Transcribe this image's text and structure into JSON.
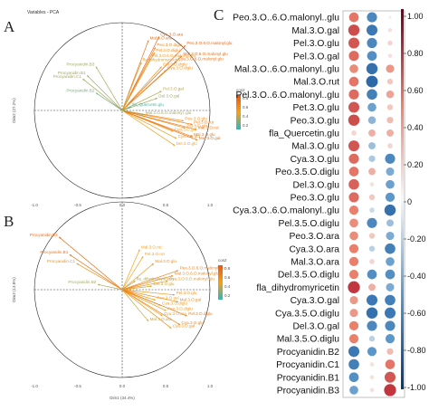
{
  "panels": {
    "a": {
      "letter": "A",
      "title": "Variables - PCA",
      "xlabel": "",
      "ylabel": "Dim2 (27.2%)",
      "legend_title": "cos2",
      "legend_ticks": [
        "0.8",
        "0.6",
        "0.4",
        "0.2"
      ],
      "ticks": [
        "-1.0",
        "-0.5",
        "0.0",
        "0.5",
        "1.0"
      ]
    },
    "b": {
      "letter": "B",
      "xlabel": "Dim1 (34.4%)",
      "ylabel": "Dim3 (13.8%)",
      "legend_title": "cos2",
      "legend_ticks": [
        "0.8",
        "0.6",
        "0.4",
        "0.2"
      ],
      "ticks": [
        "-1.0",
        "-0.5",
        "0.0",
        "0.5",
        "1.0"
      ]
    },
    "c": {
      "letter": "C"
    }
  },
  "chart_data": [
    {
      "type": "scatter",
      "kind": "pca-correlation-circle",
      "title": "Variables - PCA",
      "xlabel": "",
      "ylabel": "Dim2 (27.2%)",
      "xlim": [
        -1,
        1
      ],
      "ylim": [
        -1,
        1
      ],
      "color_scale": {
        "name": "cos2",
        "colors": [
          "#2ab7c0",
          "#f6a01a",
          "#e2581a"
        ]
      },
      "vectors": [
        {
          "label": "Cya.3.O.ara",
          "x": 0.42,
          "y": 0.84,
          "cos2": 0.9
        },
        {
          "label": "Mal.3.O.ara",
          "x": 0.3,
          "y": 0.8,
          "cos2": 0.8
        },
        {
          "label": "Peo.3.O.diglu",
          "x": 0.38,
          "y": 0.72,
          "cos2": 0.7
        },
        {
          "label": "Pel.3.O.diglu",
          "x": 0.37,
          "y": 0.66,
          "cos2": 0.65
        },
        {
          "label": "Peo.3.O.6.O.malonyl.glu",
          "x": 0.72,
          "y": 0.74,
          "cos2": 0.9
        },
        {
          "label": "Cya.3.O.6.O.malonyl.glu",
          "x": 0.62,
          "y": 0.56,
          "cos2": 0.8
        },
        {
          "label": "Mal.3.O.6.O.malonyl.glu",
          "x": 0.68,
          "y": 0.62,
          "cos2": 0.85
        },
        {
          "label": "Pel.3.O.6.O.malonyl.glu",
          "x": 0.32,
          "y": 0.6,
          "cos2": 0.6
        },
        {
          "label": "Del.3.O.diglu",
          "x": 0.45,
          "y": 0.5,
          "cos2": 0.6
        },
        {
          "label": "Cya.3.O.diglu",
          "x": 0.5,
          "y": 0.46,
          "cos2": 0.6
        },
        {
          "label": "fla_dihydromyricetin",
          "x": 0.22,
          "y": 0.55,
          "cos2": 0.4
        },
        {
          "label": "Procyanidin.B3",
          "x": -0.3,
          "y": 0.5,
          "cos2": 0.3
        },
        {
          "label": "Procyanidin.B1",
          "x": -0.4,
          "y": 0.4,
          "cos2": 0.3
        },
        {
          "label": "Procyanidin.C1",
          "x": -0.45,
          "y": 0.36,
          "cos2": 0.3
        },
        {
          "label": "Procyanidin.B2",
          "x": -0.3,
          "y": 0.2,
          "cos2": 0.2
        },
        {
          "label": "Del.3.O.gal",
          "x": 0.4,
          "y": 0.14,
          "cos2": 0.3
        },
        {
          "label": "Pel.3.O.gal",
          "x": 0.45,
          "y": 0.22,
          "cos2": 0.35
        },
        {
          "label": "fla_Quercetin.glu",
          "x": 0.1,
          "y": 0.04,
          "cos2": 0.1
        },
        {
          "label": "Peo.3.O.glu",
          "x": 0.7,
          "y": -0.12,
          "cos2": 0.6
        },
        {
          "label": "Pel.3.O.glu",
          "x": 0.72,
          "y": -0.2,
          "cos2": 0.65
        },
        {
          "label": "Pel.3.O.rut",
          "x": 0.8,
          "y": -0.16,
          "cos2": 0.7
        },
        {
          "label": "Mal.3.O.rut",
          "x": 0.85,
          "y": -0.22,
          "cos2": 0.75
        },
        {
          "label": "Cya.3.O.gal",
          "x": 0.58,
          "y": -0.24,
          "cos2": 0.5
        },
        {
          "label": "Cya.3.O.glu",
          "x": 0.62,
          "y": -0.32,
          "cos2": 0.55
        },
        {
          "label": "Mal.3.O.glu",
          "x": 0.8,
          "y": -0.3,
          "cos2": 0.75
        },
        {
          "label": "Mal.3.O.gal",
          "x": 0.86,
          "y": -0.34,
          "cos2": 0.8
        },
        {
          "label": "Del.3.O.glu",
          "x": 0.6,
          "y": -0.4,
          "cos2": 0.5
        },
        {
          "label": "Mal.3.O.6.O.malonyl..glu",
          "x": 0.25,
          "y": -0.05,
          "cos2": 0.3
        }
      ]
    },
    {
      "type": "scatter",
      "kind": "pca-correlation-circle",
      "xlabel": "Dim1 (34.4%)",
      "ylabel": "Dim3 (13.8%)",
      "xlim": [
        -1,
        1
      ],
      "ylim": [
        -1,
        1
      ],
      "color_scale": {
        "name": "cos2",
        "colors": [
          "#2ab7c0",
          "#f6a01a",
          "#e2581a"
        ]
      },
      "vectors": [
        {
          "label": "Procyanidin.B3",
          "x": -0.72,
          "y": 0.6,
          "cos2": 0.85
        },
        {
          "label": "Procyanidin.B1",
          "x": -0.6,
          "y": 0.4,
          "cos2": 0.8
        },
        {
          "label": "Procyanidin.C1",
          "x": -0.52,
          "y": 0.3,
          "cos2": 0.6
        },
        {
          "label": "Procyanidin.B2",
          "x": -0.28,
          "y": 0.06,
          "cos2": 0.3
        },
        {
          "label": "Mal.3.O.rut",
          "x": 0.2,
          "y": 0.46,
          "cos2": 0.5
        },
        {
          "label": "Pel.3.O.rut",
          "x": 0.24,
          "y": 0.38,
          "cos2": 0.5
        },
        {
          "label": "Mal.3.O.glu",
          "x": 0.36,
          "y": 0.3,
          "cos2": 0.6
        },
        {
          "label": "Peo.3.O.6.O.malonyl.glu",
          "x": 0.64,
          "y": 0.22,
          "cos2": 0.7
        },
        {
          "label": "Mal.3.O.6.O.malonyl.glu",
          "x": 0.58,
          "y": 0.16,
          "cos2": 0.65
        },
        {
          "label": "Cya.3.O.6.O.malonyl.glu",
          "x": 0.52,
          "y": 0.1,
          "cos2": 0.6
        },
        {
          "label": "Del.3.O.glu",
          "x": 0.34,
          "y": 0.04,
          "cos2": 0.4
        },
        {
          "label": "fla_dihydromyricetin",
          "x": 0.15,
          "y": 0.1,
          "cos2": 0.3
        },
        {
          "label": "Pel.3.O.glu",
          "x": 0.6,
          "y": -0.06,
          "cos2": 0.6
        },
        {
          "label": "Mal.3.O.gal",
          "x": 0.64,
          "y": -0.14,
          "cos2": 0.65
        },
        {
          "label": "Peo.3.O.gal",
          "x": 0.38,
          "y": -0.12,
          "cos2": 0.5
        },
        {
          "label": "Cya.3.O.diglu",
          "x": 0.44,
          "y": -0.18,
          "cos2": 0.55
        },
        {
          "label": "Peo.3.O.diglu",
          "x": 0.5,
          "y": -0.24,
          "cos2": 0.55
        },
        {
          "label": "Pel.3.O.diglu",
          "x": 0.74,
          "y": -0.3,
          "cos2": 0.75
        },
        {
          "label": "Cya.3.O.ara",
          "x": 0.46,
          "y": -0.3,
          "cos2": 0.5
        },
        {
          "label": "Cya.3.O.glu",
          "x": 0.66,
          "y": -0.4,
          "cos2": 0.7
        },
        {
          "label": "Cya.3.O.gal",
          "x": 0.56,
          "y": -0.44,
          "cos2": 0.6
        },
        {
          "label": "Mal.3.O.ara",
          "x": 0.3,
          "y": -0.36,
          "cos2": 0.4
        }
      ]
    },
    {
      "type": "heatmap",
      "kind": "correlation-bubble",
      "columns": 3,
      "scale": {
        "min": -1.0,
        "max": 1.0,
        "ticks": [
          "1.00",
          "0.80",
          "0.60",
          "0.40",
          "0.20",
          "0",
          "-0.20",
          "-0.40",
          "-0.60",
          "-0.80",
          "-1.00"
        ]
      },
      "rows": [
        {
          "label": "Peo.3.O..6.O.malonyl..glu",
          "values": [
            0.55,
            -0.6,
            0.05
          ]
        },
        {
          "label": "Mal.3.O.gal",
          "values": [
            0.75,
            -0.7,
            0.1
          ]
        },
        {
          "label": "Pel.3.O.glu",
          "values": [
            0.7,
            -0.6,
            0.15
          ]
        },
        {
          "label": "Pel.3.O.gal",
          "values": [
            0.6,
            -0.55,
            0.1
          ]
        },
        {
          "label": "Mal.3.O..6.O.malonyl..glu",
          "values": [
            0.45,
            -0.75,
            0.4
          ]
        },
        {
          "label": "Mal.3.O.rut",
          "values": [
            0.55,
            -0.8,
            0.2
          ]
        },
        {
          "label": "Pel.3.O..6.O.malonyl..glu",
          "values": [
            0.6,
            -0.65,
            0.35
          ]
        },
        {
          "label": "Pet.3.O.glu",
          "values": [
            0.7,
            -0.45,
            0.2
          ]
        },
        {
          "label": "Peo.3.O.glu",
          "values": [
            0.75,
            -0.35,
            0.25
          ]
        },
        {
          "label": "fla_Quercetin.glu",
          "values": [
            0.15,
            0.3,
            0.3
          ]
        },
        {
          "label": "Mal.3.O.glu",
          "values": [
            0.7,
            -0.3,
            0.15
          ]
        },
        {
          "label": "Cya.3.O.glu",
          "values": [
            0.6,
            -0.25,
            -0.6
          ]
        },
        {
          "label": "Peo.3.5.O.diglu",
          "values": [
            0.55,
            0.3,
            -0.4
          ]
        },
        {
          "label": "Del.3.O.glu",
          "values": [
            0.65,
            0.1,
            -0.45
          ]
        },
        {
          "label": "Peo.3.O.glu",
          "values": [
            0.6,
            0.2,
            -0.5
          ]
        },
        {
          "label": "Cya.3.O..6.O.malonyl..glu",
          "values": [
            0.5,
            -0.15,
            -0.75
          ]
        },
        {
          "label": "Pel.3.5.O.diglu",
          "values": [
            0.45,
            -0.6,
            -0.3
          ]
        },
        {
          "label": "Peo.3.O.ara",
          "values": [
            0.45,
            0.2,
            -0.4
          ]
        },
        {
          "label": "Cya.3.O.ara",
          "values": [
            0.5,
            -0.2,
            -0.65
          ]
        },
        {
          "label": "Mal.3.O.ara",
          "values": [
            0.5,
            0.15,
            -0.45
          ]
        },
        {
          "label": "Del.3.5.O.diglu",
          "values": [
            0.5,
            -0.55,
            -0.55
          ]
        },
        {
          "label": "fla_dihydromyricetin",
          "values": [
            0.85,
            0.3,
            -0.4
          ]
        },
        {
          "label": "Cya.3.O.gal",
          "values": [
            0.4,
            -0.7,
            -0.65
          ]
        },
        {
          "label": "Cya.3.5.O.diglu",
          "values": [
            0.4,
            -0.75,
            -0.7
          ]
        },
        {
          "label": "Del.3.O.gal",
          "values": [
            0.5,
            -0.6,
            -0.6
          ]
        },
        {
          "label": "Mal.3.5.O.diglu",
          "values": [
            0.5,
            -0.2,
            -0.5
          ]
        },
        {
          "label": "Procyanidin.B2",
          "values": [
            -0.7,
            -0.5,
            0.25
          ]
        },
        {
          "label": "Procyanidin.C1",
          "values": [
            -0.65,
            0.1,
            0.55
          ]
        },
        {
          "label": "Procyanidin.B1",
          "values": [
            -0.55,
            0.1,
            0.7
          ]
        },
        {
          "label": "Procyanidin.B3",
          "values": [
            -0.45,
            0.1,
            0.85
          ]
        }
      ]
    }
  ]
}
